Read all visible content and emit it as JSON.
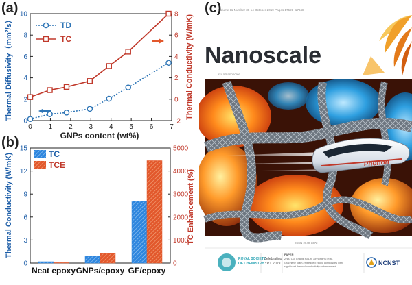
{
  "panels": {
    "a_label": "(a)",
    "b_label": "(b)",
    "c_label": "(c)"
  },
  "chart_data": [
    {
      "type": "line",
      "panel": "(a)",
      "xlabel": "GNPs content (wt%)",
      "ylabel_left": "Thermal Diffusivity（mm²/s）",
      "ylabel_right": "Thermal Conductivity (W/mK)",
      "xlim": [
        0,
        7
      ],
      "xticks": [
        "0",
        "1",
        "2",
        "3",
        "4",
        "5",
        "6",
        "7"
      ],
      "ylim_left": [
        0,
        10
      ],
      "yticks_left": [
        "0",
        "2",
        "4",
        "6",
        "8",
        "10"
      ],
      "ylim_right": [
        -2,
        8
      ],
      "yticks_right": [
        "-2",
        "0",
        "2",
        "4",
        "6",
        "8"
      ],
      "legend_placement": "top-left",
      "series": [
        {
          "name": "TD",
          "axis": "left",
          "style": "dotted",
          "marker": "circle",
          "color": "#2e75b6",
          "x": [
            0,
            0.97,
            1.8,
            2.95,
            3.9,
            4.85,
            6.85
          ],
          "y": [
            0.15,
            0.6,
            0.75,
            1.1,
            2.05,
            3.1,
            5.4
          ]
        },
        {
          "name": "TC",
          "axis": "right",
          "style": "solid",
          "marker": "square",
          "color": "#c0392b",
          "x": [
            0,
            0.97,
            1.8,
            2.95,
            3.9,
            4.85,
            6.85
          ],
          "y": [
            0.2,
            0.85,
            1.15,
            1.7,
            3.1,
            4.45,
            8.0
          ]
        }
      ]
    },
    {
      "type": "bar",
      "panel": "(b)",
      "categories": [
        "Neat epoxy",
        "GNPs/epoxy",
        "GF/epoxy"
      ],
      "ylabel_left": "Thermal Conductivity (W/mK)",
      "ylabel_right": "TC Enhancement (%)",
      "ylim_left": [
        0,
        15
      ],
      "yticks_left": [
        "0",
        "3",
        "6",
        "9",
        "12",
        "15"
      ],
      "ylim_right": [
        0,
        5000
      ],
      "yticks_right": [
        "0",
        "1000",
        "2000",
        "3000",
        "4000",
        "5000"
      ],
      "legend_placement": "top-left",
      "series": [
        {
          "name": "TC",
          "axis": "left",
          "color": "#2e86de",
          "values": [
            0.18,
            0.9,
            8.1
          ]
        },
        {
          "name": "TCE",
          "axis": "right",
          "color": "#e2582c",
          "values": [
            0,
            410,
            4450
          ]
        }
      ]
    }
  ],
  "cover": {
    "journal": "Nanoscale",
    "issue_line": "Volume 11  Number 38  14 October 2019  Pages 17521–17848",
    "url": "rsc.li/nanoscale",
    "issn": "ISSN 2040-3372",
    "train_label": "Phonon",
    "society_line1": "ROYAL SOCIETY",
    "society_line2": "OF CHEMISTRY",
    "celebrating_line1": "Celebrating",
    "celebrating_line2": "IYPT 2019",
    "paper_heading": "PAPER",
    "paper_authors": "Zhou Qu, Chang-Yu Lin, Xinhong Yu et al.",
    "paper_title_1": "Graphene foam-embedded epoxy composites with",
    "paper_title_2": "significant thermal conductivity enhancement",
    "ncnst": "NCNST"
  },
  "colors": {
    "td_blue": "#2e75b6",
    "tc_red": "#c0392b",
    "bar_blue": "#2e86de",
    "bar_orange": "#e2582c",
    "cover_dark": "#2b2e34",
    "cover_orange": "#f0a02a"
  }
}
